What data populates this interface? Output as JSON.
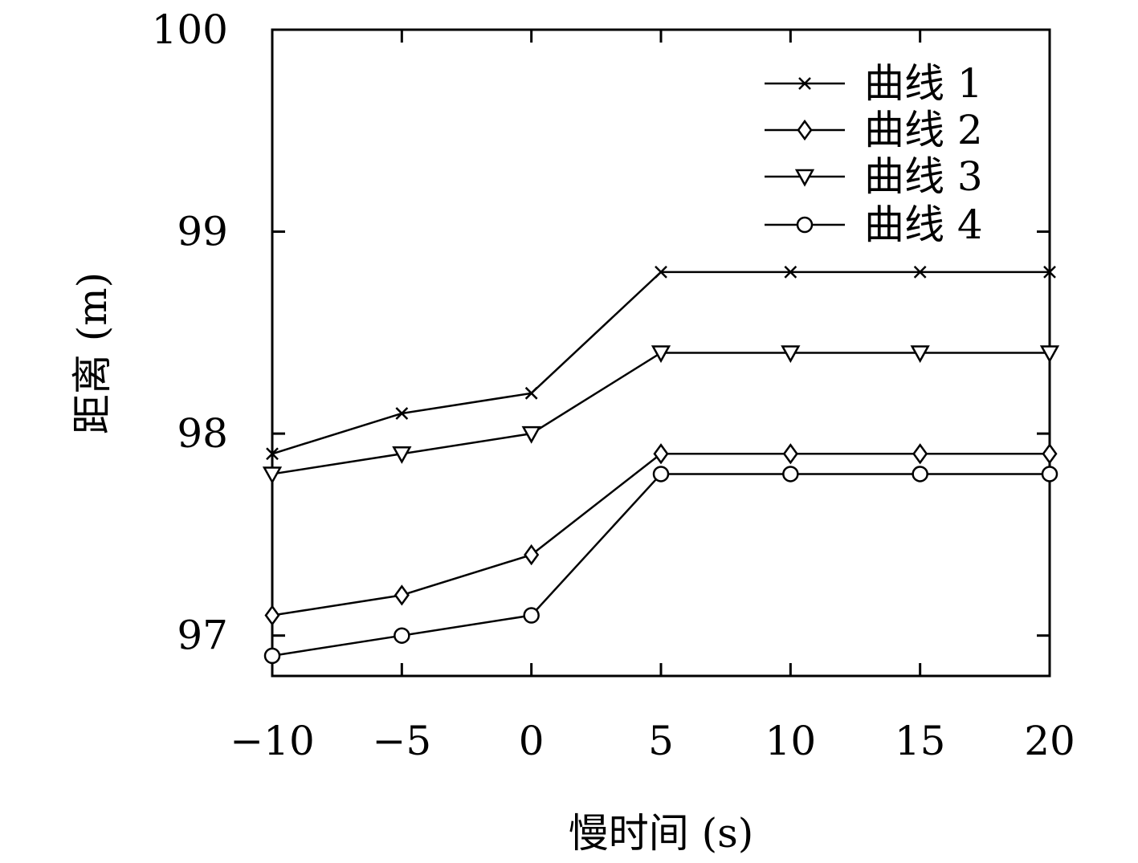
{
  "chart_data": {
    "type": "line",
    "title": "",
    "xlabel": "慢时间 (s)",
    "ylabel": "距离 (m)",
    "xlim": [
      -10,
      20
    ],
    "ylim": [
      96.8,
      100
    ],
    "x_ticks": [
      -10,
      -5,
      0,
      5,
      10,
      15,
      20
    ],
    "x_tick_labels": [
      "−10",
      "−5",
      "0",
      "5",
      "10",
      "15",
      "20"
    ],
    "y_ticks": [
      97,
      98,
      99,
      100
    ],
    "y_tick_labels": [
      "97",
      "98",
      "99",
      "100"
    ],
    "grid": false,
    "legend_position": "top-right",
    "x": [
      -10,
      -5,
      0,
      5,
      10,
      15,
      20
    ],
    "series": [
      {
        "name": "曲线 1",
        "marker": "x",
        "values": [
          97.9,
          98.1,
          98.2,
          98.8,
          98.8,
          98.8,
          98.8
        ]
      },
      {
        "name": "曲线 2",
        "marker": "diamond",
        "values": [
          97.1,
          97.2,
          97.4,
          97.9,
          97.9,
          97.9,
          97.9
        ]
      },
      {
        "name": "曲线 3",
        "marker": "triangle-down",
        "values": [
          97.8,
          97.9,
          98.0,
          98.4,
          98.4,
          98.4,
          98.4
        ]
      },
      {
        "name": "曲线 4",
        "marker": "circle",
        "values": [
          96.9,
          97.0,
          97.1,
          97.8,
          97.8,
          97.8,
          97.8
        ]
      }
    ]
  }
}
